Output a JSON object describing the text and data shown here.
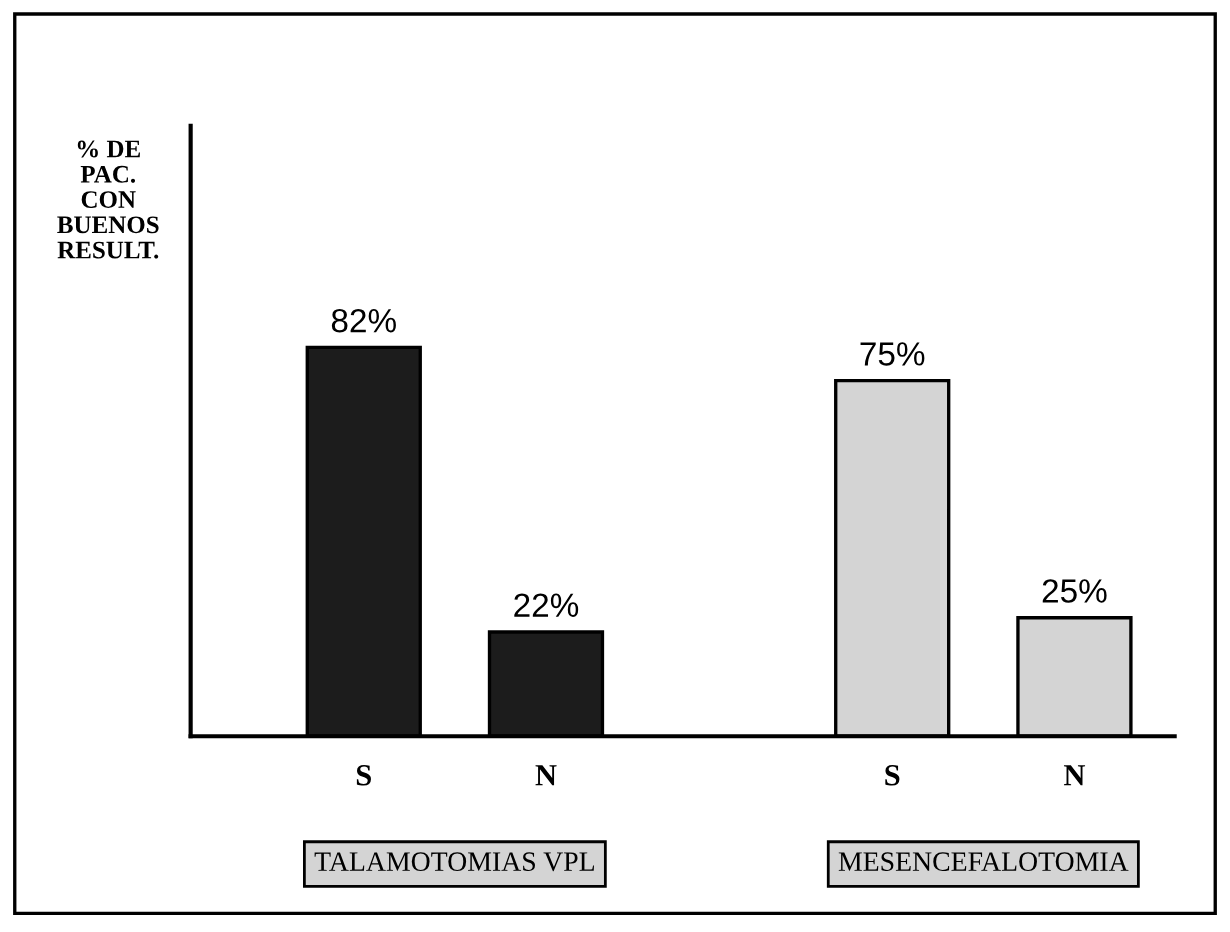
{
  "chart_data": {
    "type": "bar",
    "ylabel": "% DE\nPAC.\nCON\nBUENOS\nRESULT.",
    "categories": [
      "S",
      "N",
      "S",
      "N"
    ],
    "values": [
      82,
      22,
      75,
      25
    ],
    "colors": [
      "#1c1c1c",
      "#1c1c1c",
      "#d4d4d4",
      "#d4d4d4"
    ],
    "value_labels": [
      "82%",
      "22%",
      "75%",
      "25%"
    ],
    "annotations": [
      "TALAMOTOMIAS VPL",
      "MESENCEFALOTOMIA"
    ],
    "grid": false,
    "legend": false
  }
}
